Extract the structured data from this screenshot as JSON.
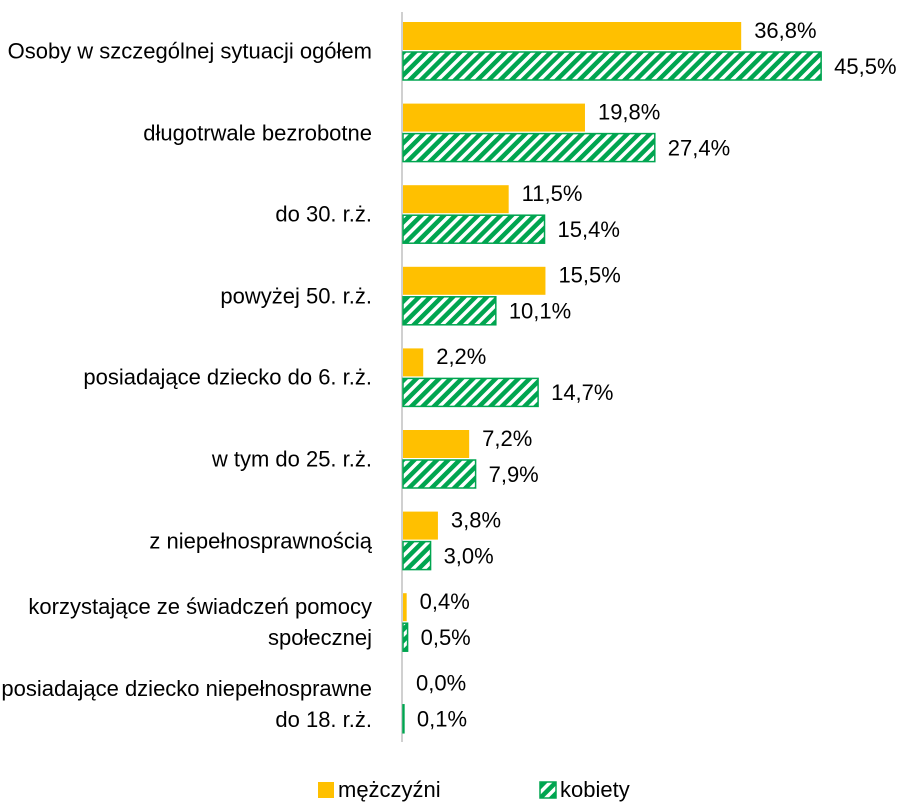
{
  "chart_data": {
    "type": "bar",
    "orientation": "horizontal",
    "categories": [
      "Osoby w szczególnej sytuacji ogółem",
      "długotrwale bezrobotne",
      "do 30. r.ż.",
      "powyżej 50. r.ż.",
      "posiadające dziecko do 6. r.ż.",
      "w tym do 25. r.ż.",
      "z niepełnosprawnością",
      "korzystające ze świadczeń pomocy społecznej",
      "posiadające dziecko niepełnosprawne do 18. r.ż."
    ],
    "series": [
      {
        "name": "mężczyźni",
        "color": "#ffc000",
        "pattern": "solid",
        "values": [
          36.8,
          19.8,
          11.5,
          15.5,
          2.2,
          7.2,
          3.8,
          0.4,
          0.0
        ],
        "value_labels": [
          "36,8%",
          "19,8%",
          "11,5%",
          "15,5%",
          "2,2%",
          "7,2%",
          "3,8%",
          "0,4%",
          "0,0%"
        ]
      },
      {
        "name": "kobiety",
        "color": "#00a550",
        "pattern": "hatch",
        "values": [
          45.5,
          27.4,
          15.4,
          10.1,
          14.7,
          7.9,
          3.0,
          0.5,
          0.1
        ],
        "value_labels": [
          "45,5%",
          "27,4%",
          "15,4%",
          "10,1%",
          "14,7%",
          "7,9%",
          "3,0%",
          "0,5%",
          "0,1%"
        ]
      }
    ],
    "legend": "bottom"
  }
}
